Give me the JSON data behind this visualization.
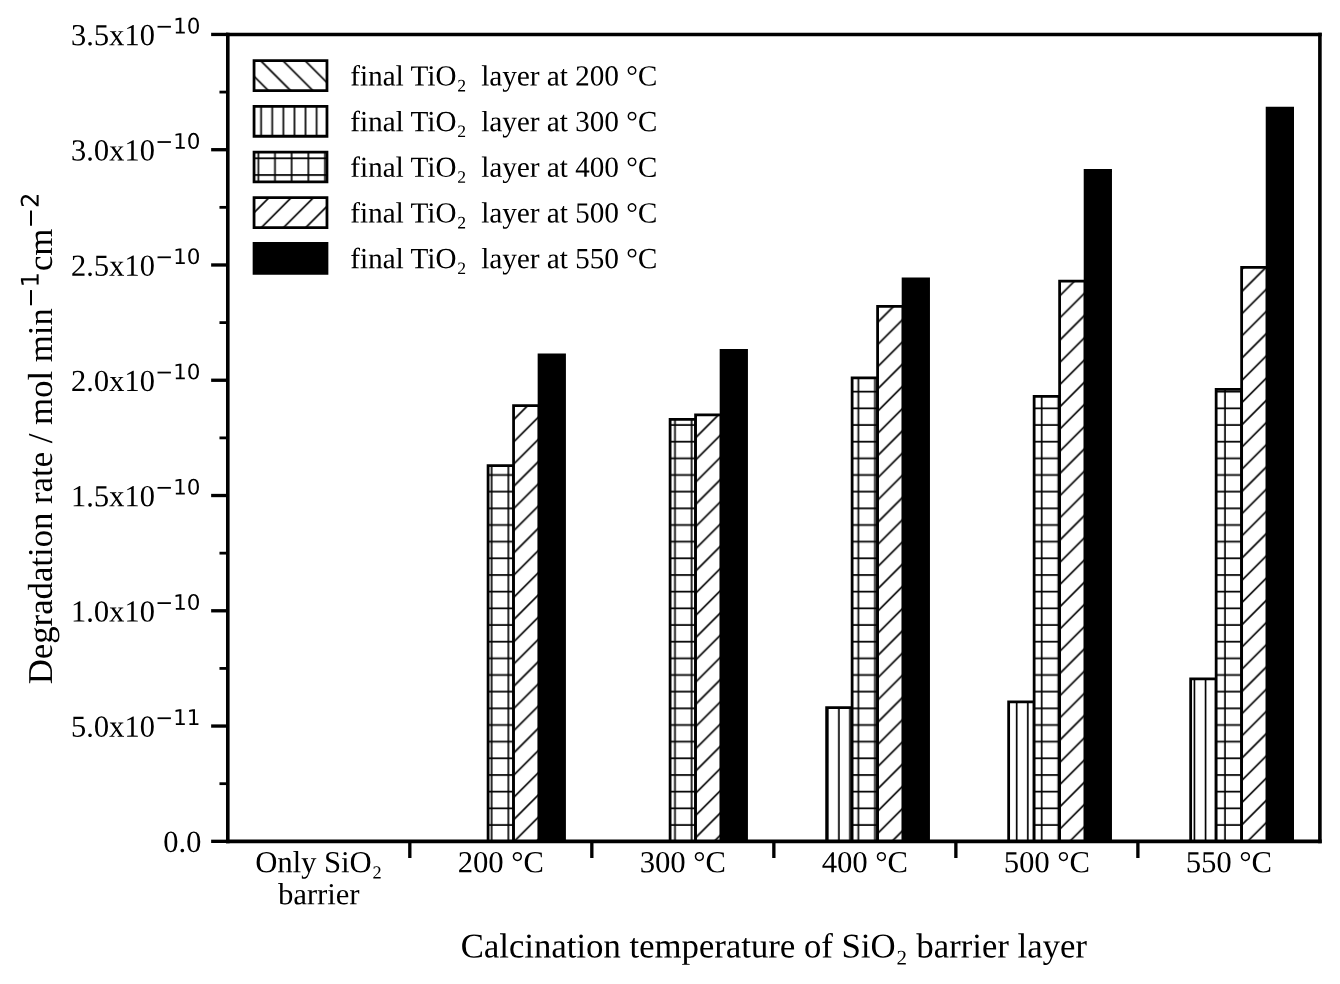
{
  "chart_data": {
    "type": "bar",
    "xlabel": "Calcination temperature of SiO₂ barrier layer",
    "ylabel": "Degradation rate / mol min$^{−1}$cm$^{−2}$",
    "categories": [
      "Only SiO₂\nbarrier",
      "200 °C",
      "300 °C",
      "400 °C",
      "500 °C",
      "550 °C"
    ],
    "series": [
      {
        "name": "final TiO₂  layer at 200 °C",
        "color": "#000000",
        "values": [
          null,
          null,
          null,
          null,
          null,
          null
        ]
      },
      {
        "name": "final TiO₂  layer at 300 °C",
        "color": "#000000",
        "values": [
          null,
          null,
          null,
          5.8e-11,
          6.05e-11,
          7.05e-11
        ]
      },
      {
        "name": "final TiO₂  layer at 400 °C",
        "color": "#000000",
        "values": [
          null,
          1.63e-10,
          1.83e-10,
          2.01e-10,
          1.93e-10,
          1.96e-10
        ]
      },
      {
        "name": "final TiO₂  layer at 500 °C",
        "color": "#000000",
        "values": [
          null,
          1.89e-10,
          1.85e-10,
          2.32e-10,
          2.43e-10,
          2.49e-10
        ]
      },
      {
        "name": "final TiO₂  layer at 550 °C",
        "color": "#000000",
        "values": [
          null,
          2.11e-10,
          2.13e-10,
          2.44e-10,
          2.91e-10,
          3.18e-10
        ]
      }
    ],
    "ylim": [
      0,
      3.5e-10
    ],
    "yticks": [
      {
        "value": 0,
        "label": "0.0"
      },
      {
        "value": 5e-11,
        "label": "5.0x10$^{−11}$"
      },
      {
        "value": 1e-10,
        "label": "1.0x10$^{−10}$"
      },
      {
        "value": 1.5e-10,
        "label": "1.5x10$^{−10}$"
      },
      {
        "value": 2e-10,
        "label": "2.0x10$^{−10}$"
      },
      {
        "value": 2.5e-10,
        "label": "2.5x10$^{−10}$"
      },
      {
        "value": 3e-10,
        "label": "3.0x10$^{−10}$"
      },
      {
        "value": 3.5e-10,
        "label": "3.5x10$^{−10}$"
      }
    ],
    "grid": false,
    "legend": "top left"
  }
}
